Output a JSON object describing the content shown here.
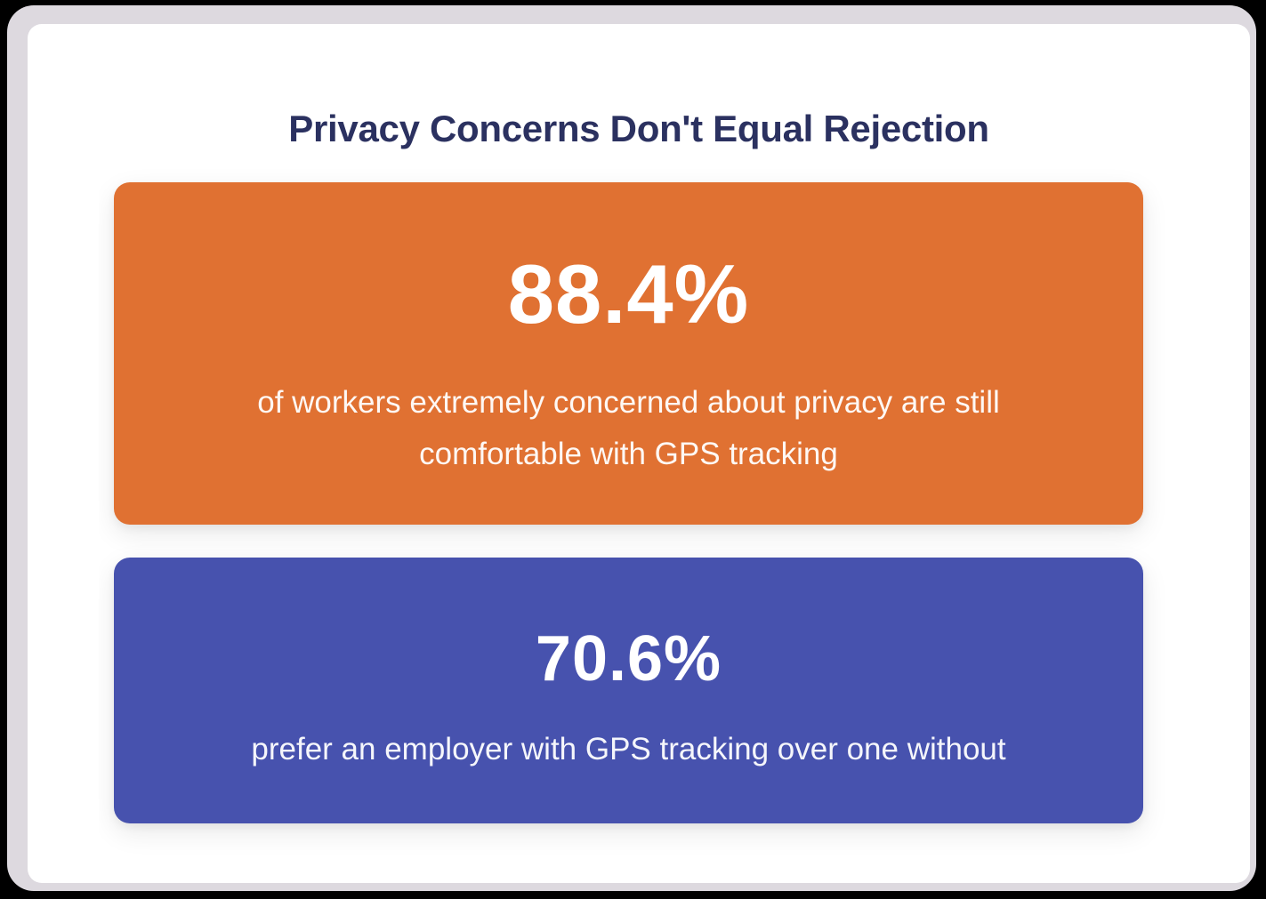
{
  "title": "Privacy Concerns Don't Equal Rejection",
  "colors": {
    "title": "#2b3160",
    "card_orange": "#e07132",
    "card_blue": "#4752ae",
    "frame": "#ddd9df",
    "panel": "#ffffff"
  },
  "stats": [
    {
      "value": "88.4%",
      "description": "of workers extremely concerned about privacy are still comfortable with GPS tracking",
      "color": "#e07132"
    },
    {
      "value": "70.6%",
      "description": "prefer an employer with GPS tracking over one without",
      "color": "#4752ae"
    }
  ]
}
